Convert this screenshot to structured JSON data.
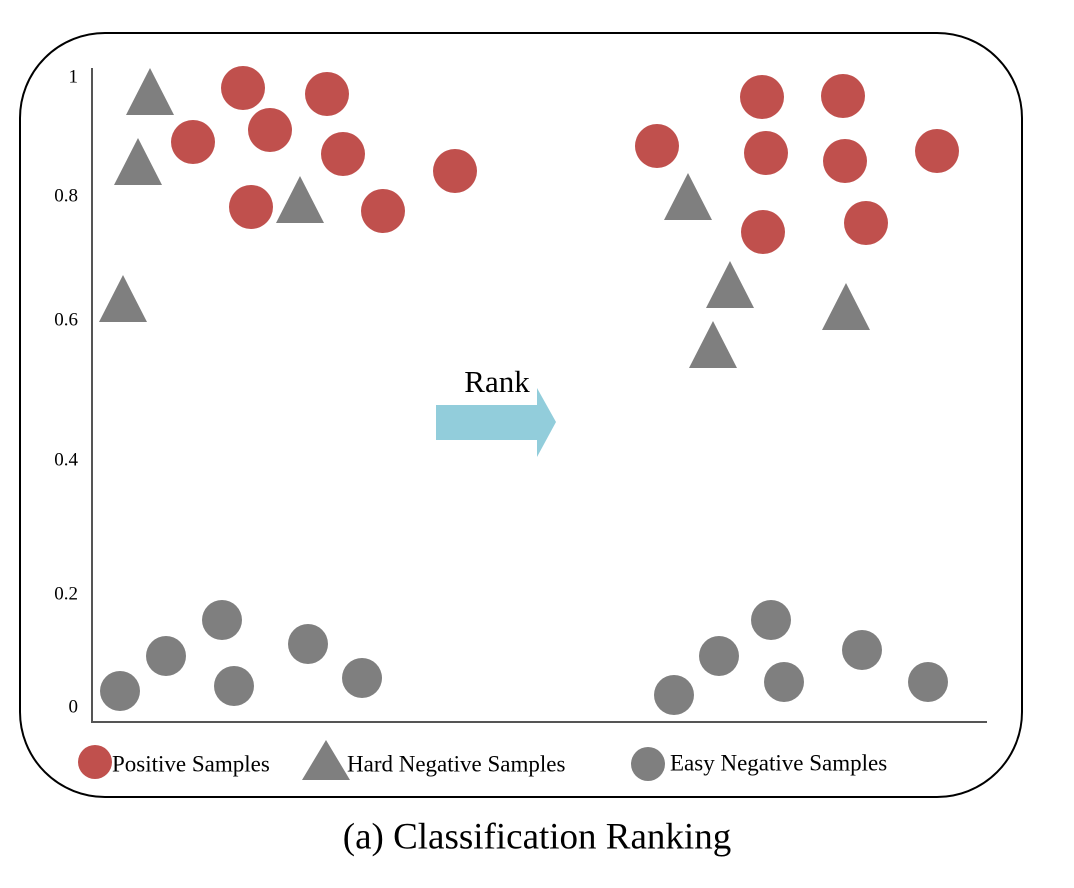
{
  "axis": {
    "tick_labels": [
      "1",
      "0.8",
      "0.6",
      "0.4",
      "0.2",
      "0"
    ]
  },
  "arrow_label": "Rank",
  "legend": {
    "items": [
      "Positive Samples",
      "Hard  Negative Samples",
      "Easy Negative Samples"
    ]
  },
  "caption": "(a)  Classification Ranking"
}
